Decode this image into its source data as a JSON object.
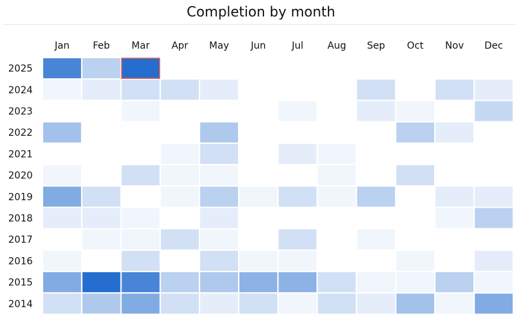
{
  "chart_data": {
    "type": "heatmap",
    "title": "Completion by month",
    "months": [
      "Jan",
      "Feb",
      "Mar",
      "Apr",
      "May",
      "Jun",
      "Jul",
      "Aug",
      "Sep",
      "Oct",
      "Nov",
      "Dec"
    ],
    "years": [
      "2025",
      "2024",
      "2023",
      "2022",
      "2021",
      "2020",
      "2019",
      "2018",
      "2017",
      "2016",
      "2015",
      "2014"
    ],
    "value_scale": [
      0,
      1
    ],
    "values": [
      [
        0.8,
        0.3,
        0.95,
        0,
        0,
        0,
        0,
        0,
        0,
        0,
        0,
        0
      ],
      [
        0.06,
        0.12,
        0.2,
        0.2,
        0.12,
        0,
        0,
        0,
        0.2,
        0,
        0.2,
        0.12
      ],
      [
        0,
        0,
        0.06,
        0,
        0,
        0,
        0.06,
        0,
        0.12,
        0.06,
        0,
        0.25
      ],
      [
        0.4,
        0,
        0,
        0,
        0.35,
        0,
        0,
        0,
        0,
        0.3,
        0.12,
        0
      ],
      [
        0,
        0,
        0,
        0.06,
        0.2,
        0,
        0.12,
        0.06,
        0,
        0,
        0,
        0
      ],
      [
        0.06,
        0,
        0.2,
        0.06,
        0.06,
        0,
        0,
        0.06,
        0,
        0.2,
        0,
        0
      ],
      [
        0.55,
        0.2,
        0,
        0.06,
        0.3,
        0.06,
        0.2,
        0.06,
        0.3,
        0,
        0.12,
        0.12
      ],
      [
        0.12,
        0.12,
        0.06,
        0,
        0.12,
        0,
        0,
        0,
        0,
        0,
        0.06,
        0.3
      ],
      [
        0,
        0.06,
        0.06,
        0.2,
        0.06,
        0,
        0.2,
        0,
        0.06,
        0,
        0,
        0
      ],
      [
        0.06,
        0,
        0.2,
        0,
        0.2,
        0.06,
        0.06,
        0,
        0,
        0.06,
        0,
        0.12
      ],
      [
        0.55,
        0.95,
        0.8,
        0.3,
        0.35,
        0.5,
        0.5,
        0.2,
        0.06,
        0.06,
        0.3,
        0.06
      ],
      [
        0.2,
        0.35,
        0.55,
        0.2,
        0.12,
        0.2,
        0.06,
        0.2,
        0.12,
        0.4,
        0.06,
        0.55
      ]
    ],
    "color_low": "#ffffff",
    "color_high": "#1a66cc",
    "highlight": {
      "year": "2025",
      "month": "Mar",
      "outline_color": "#d9534f"
    }
  }
}
